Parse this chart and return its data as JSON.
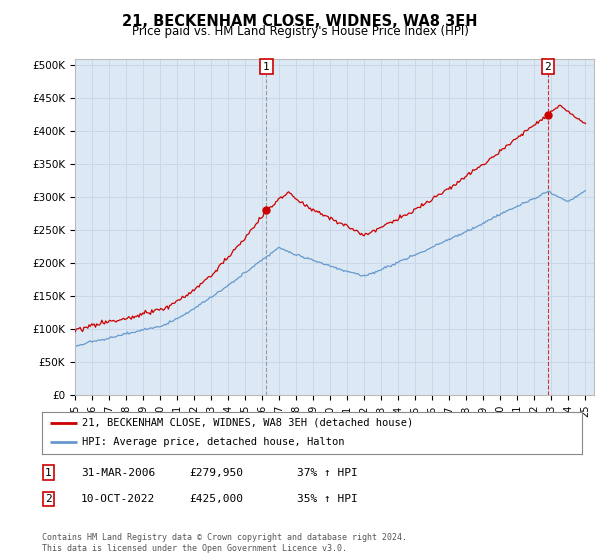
{
  "title": "21, BECKENHAM CLOSE, WIDNES, WA8 3EH",
  "subtitle": "Price paid vs. HM Land Registry's House Price Index (HPI)",
  "background_color": "#ffffff",
  "plot_bg_color": "#dce9f5",
  "ylim": [
    0,
    510000
  ],
  "yticks": [
    0,
    50000,
    100000,
    150000,
    200000,
    250000,
    300000,
    350000,
    400000,
    450000,
    500000
  ],
  "ytick_labels": [
    "£0",
    "£50K",
    "£100K",
    "£150K",
    "£200K",
    "£250K",
    "£300K",
    "£350K",
    "£400K",
    "£450K",
    "£500K"
  ],
  "xlim": [
    1995,
    2025.5
  ],
  "sale1_date": 2006.25,
  "sale1_price": 279950,
  "sale2_date": 2022.78,
  "sale2_price": 425000,
  "legend_line1": "21, BECKENHAM CLOSE, WIDNES, WA8 3EH (detached house)",
  "legend_line2": "HPI: Average price, detached house, Halton",
  "sale1_label": "1",
  "sale1_date_str": "31-MAR-2006",
  "sale1_price_str": "£279,950",
  "sale1_hpi_str": "37% ↑ HPI",
  "sale2_label": "2",
  "sale2_date_str": "10-OCT-2022",
  "sale2_price_str": "£425,000",
  "sale2_hpi_str": "35% ↑ HPI",
  "copyright_text": "Contains HM Land Registry data © Crown copyright and database right 2024.\nThis data is licensed under the Open Government Licence v3.0.",
  "red_color": "#cc0000",
  "blue_color": "#6699cc",
  "grid_color": "#c8d8e8",
  "vline1_color": "#aaaaaa",
  "vline2_color": "#cc0000"
}
